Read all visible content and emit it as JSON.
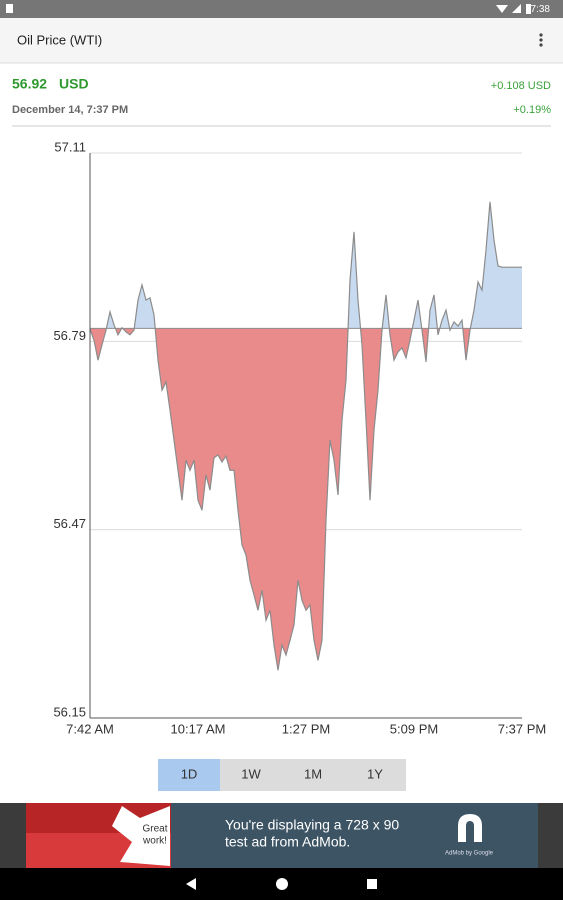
{
  "status_bar": {
    "time": "7:38"
  },
  "app_bar": {
    "title": "Oil Price (WTI)"
  },
  "quote": {
    "price": "56.92",
    "currency": "USD",
    "change": "+0.108 USD",
    "timestamp": "December 14, 7:37 PM",
    "change_percent": "+0.19%"
  },
  "chart_data": {
    "type": "area",
    "values": [
      56.811,
      56.792,
      56.758,
      56.784,
      56.809,
      56.84,
      56.818,
      56.801,
      56.813,
      56.806,
      56.801,
      56.809,
      56.86,
      56.886,
      56.86,
      56.864,
      56.835,
      56.758,
      56.707,
      56.721,
      56.673,
      56.622,
      56.571,
      56.52,
      56.588,
      56.571,
      56.588,
      56.52,
      56.503,
      56.563,
      56.537,
      56.592,
      56.597,
      56.585,
      56.595,
      56.571,
      56.571,
      56.503,
      56.444,
      56.427,
      56.384,
      56.359,
      56.333,
      56.367,
      56.316,
      56.333,
      56.274,
      56.231,
      56.274,
      56.257,
      56.282,
      56.308,
      56.384,
      56.35,
      56.333,
      56.342,
      56.282,
      56.248,
      56.282,
      56.486,
      56.622,
      56.588,
      56.529,
      56.656,
      56.724,
      56.894,
      56.976,
      56.86,
      56.784,
      56.656,
      56.52,
      56.639,
      56.707,
      56.809,
      56.869,
      56.801,
      56.758,
      56.772,
      56.779,
      56.762,
      56.792,
      56.826,
      56.86,
      56.809,
      56.755,
      56.843,
      56.869,
      56.801,
      56.826,
      56.843,
      56.809,
      56.823,
      56.816,
      56.826,
      56.758,
      56.809,
      56.843,
      56.891,
      56.877,
      56.945,
      57.027,
      56.962,
      56.918,
      56.916,
      56.916,
      56.916,
      56.916,
      56.916,
      56.916
    ],
    "reference_line": 56.812,
    "ylim": [
      56.15,
      57.11
    ],
    "yticks": [
      56.15,
      56.47,
      56.79,
      57.11
    ],
    "grid": true,
    "x_labels": [
      "7:42 AM",
      "10:17 AM",
      "1:27 PM",
      "5:09 PM",
      "7:37 PM"
    ],
    "above_color": "#c7daef",
    "below_color": "#e98a8b",
    "line_color": "#8c8c8c"
  },
  "range_buttons": {
    "labels": [
      "1D",
      "1W",
      "1M",
      "1Y"
    ],
    "selected": "1D"
  },
  "ad": {
    "badge": [
      "Great",
      "work!"
    ],
    "message": [
      "You're displaying a 728 x 90",
      "test ad from AdMob."
    ],
    "brand": "AdMob by Google"
  }
}
